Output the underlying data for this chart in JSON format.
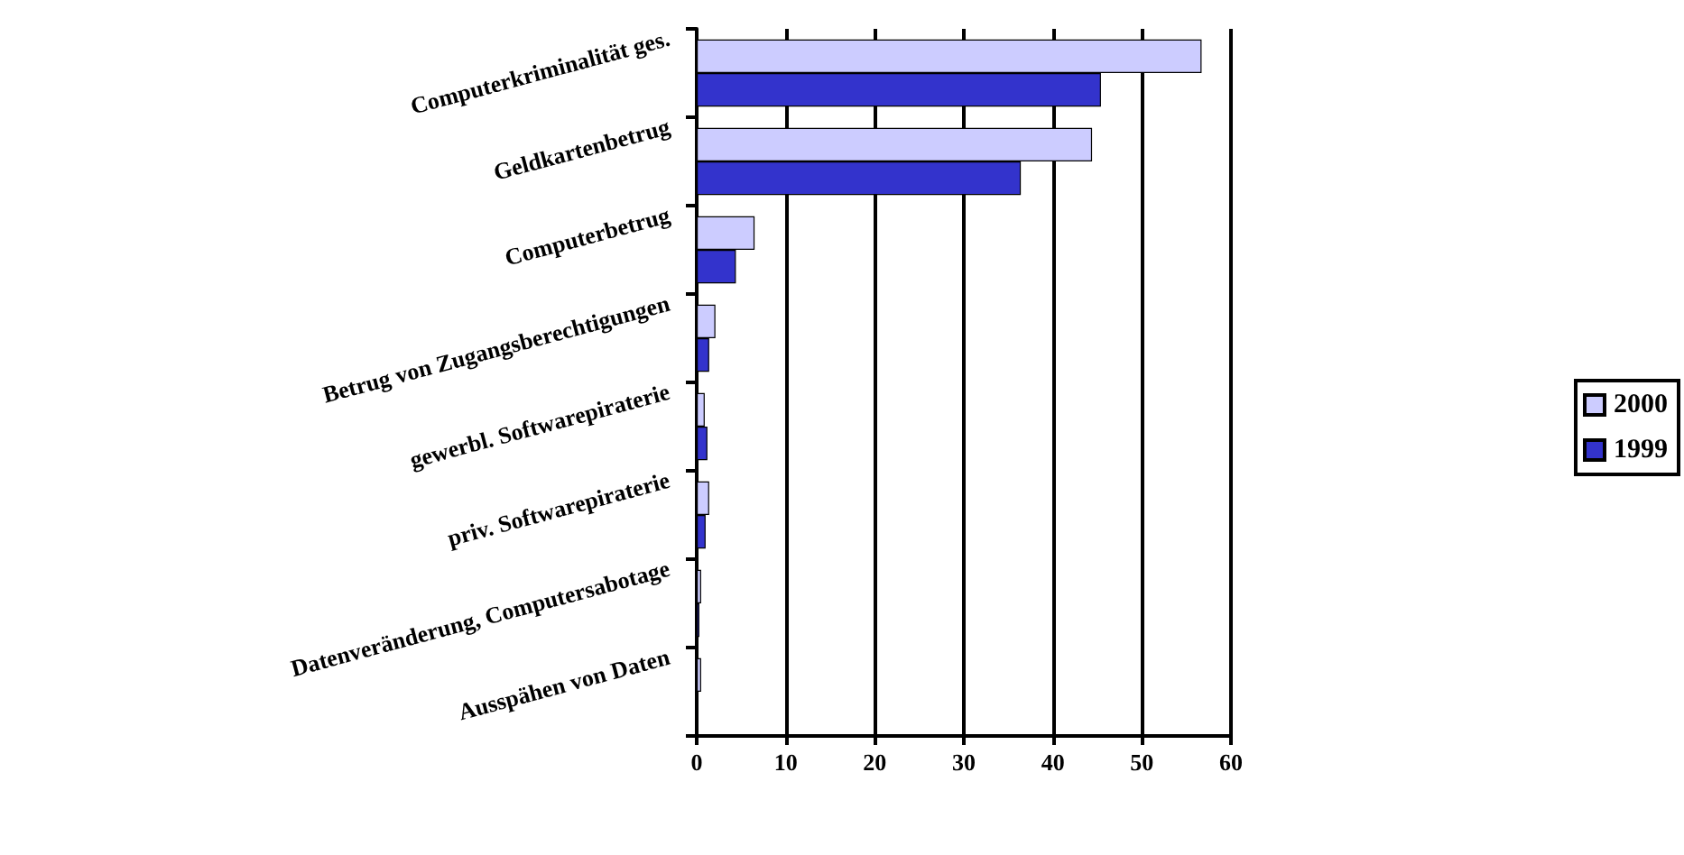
{
  "chart_data": {
    "type": "bar",
    "orientation": "horizontal",
    "categories": [
      "Computerkriminalität ges.",
      "Geldkartenbetrug",
      "Computerbetrug",
      "Betrug von Zugangsberechtigungen",
      "gewerbl. Softwarepiraterie",
      "priv. Softwarepiraterie",
      "Datenveränderung, Computersabotage",
      "Ausspähen von Daten"
    ],
    "series": [
      {
        "name": "2000",
        "color": "#ccccff",
        "values": [
          56.7,
          44.4,
          6.5,
          2.1,
          0.9,
          1.4,
          0.5,
          0.5
        ]
      },
      {
        "name": "1999",
        "color": "#3333cc",
        "values": [
          45.4,
          36.4,
          4.4,
          1.4,
          1.2,
          1.0,
          0.3,
          0.2
        ]
      }
    ],
    "xlim": [
      0,
      60
    ],
    "xticks": [
      0,
      10,
      20,
      30,
      40,
      50,
      60
    ],
    "grid": "x",
    "legend": "right"
  }
}
